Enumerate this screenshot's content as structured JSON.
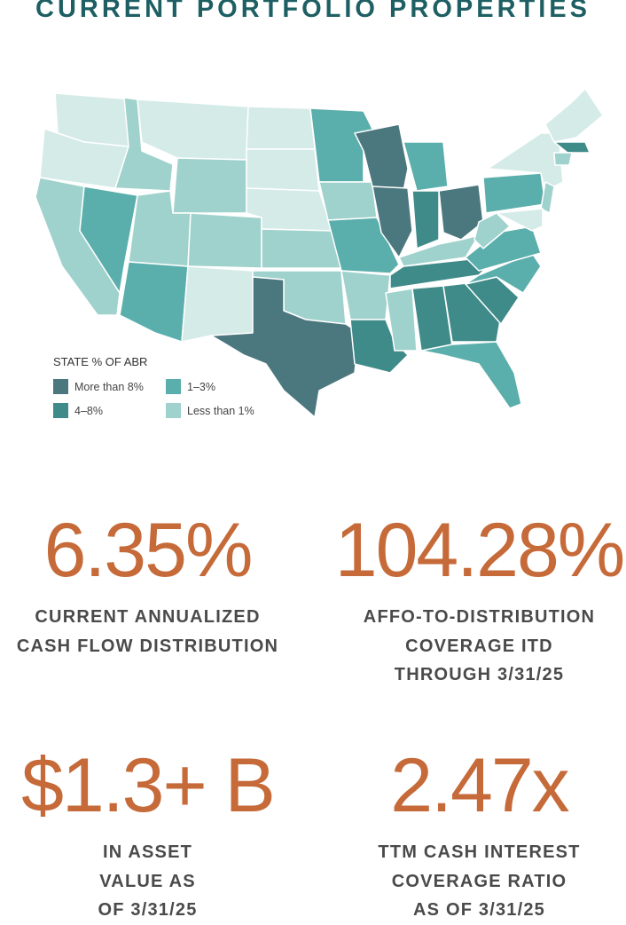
{
  "title": "CURRENT PORTFOLIO PROPERTIES",
  "legend": {
    "title": "STATE % OF ABR",
    "items": [
      {
        "label": "More than 8%",
        "color": "#4b777e"
      },
      {
        "label": "4–8%",
        "color": "#3f8b89"
      },
      {
        "label": "1–3%",
        "color": "#5aaeab"
      },
      {
        "label": "Less than 1%",
        "color": "#9fd2cc"
      }
    ]
  },
  "stats": [
    {
      "value": "6.35%",
      "label": [
        "CURRENT ANNUALIZED",
        "CASH FLOW DISTRIBUTION"
      ]
    },
    {
      "value": "104.28%",
      "label": [
        "AFFO-TO-DISTRIBUTION",
        "COVERAGE ITD",
        "THROUGH 3/31/25"
      ]
    },
    {
      "value": "$1.3+ B",
      "label": [
        "IN ASSET",
        "VALUE AS",
        "OF 3/31/25"
      ]
    },
    {
      "value": "2.47x",
      "label": [
        "TTM CASH INTEREST",
        "COVERAGE RATIO",
        "AS OF 3/31/25"
      ]
    }
  ]
}
